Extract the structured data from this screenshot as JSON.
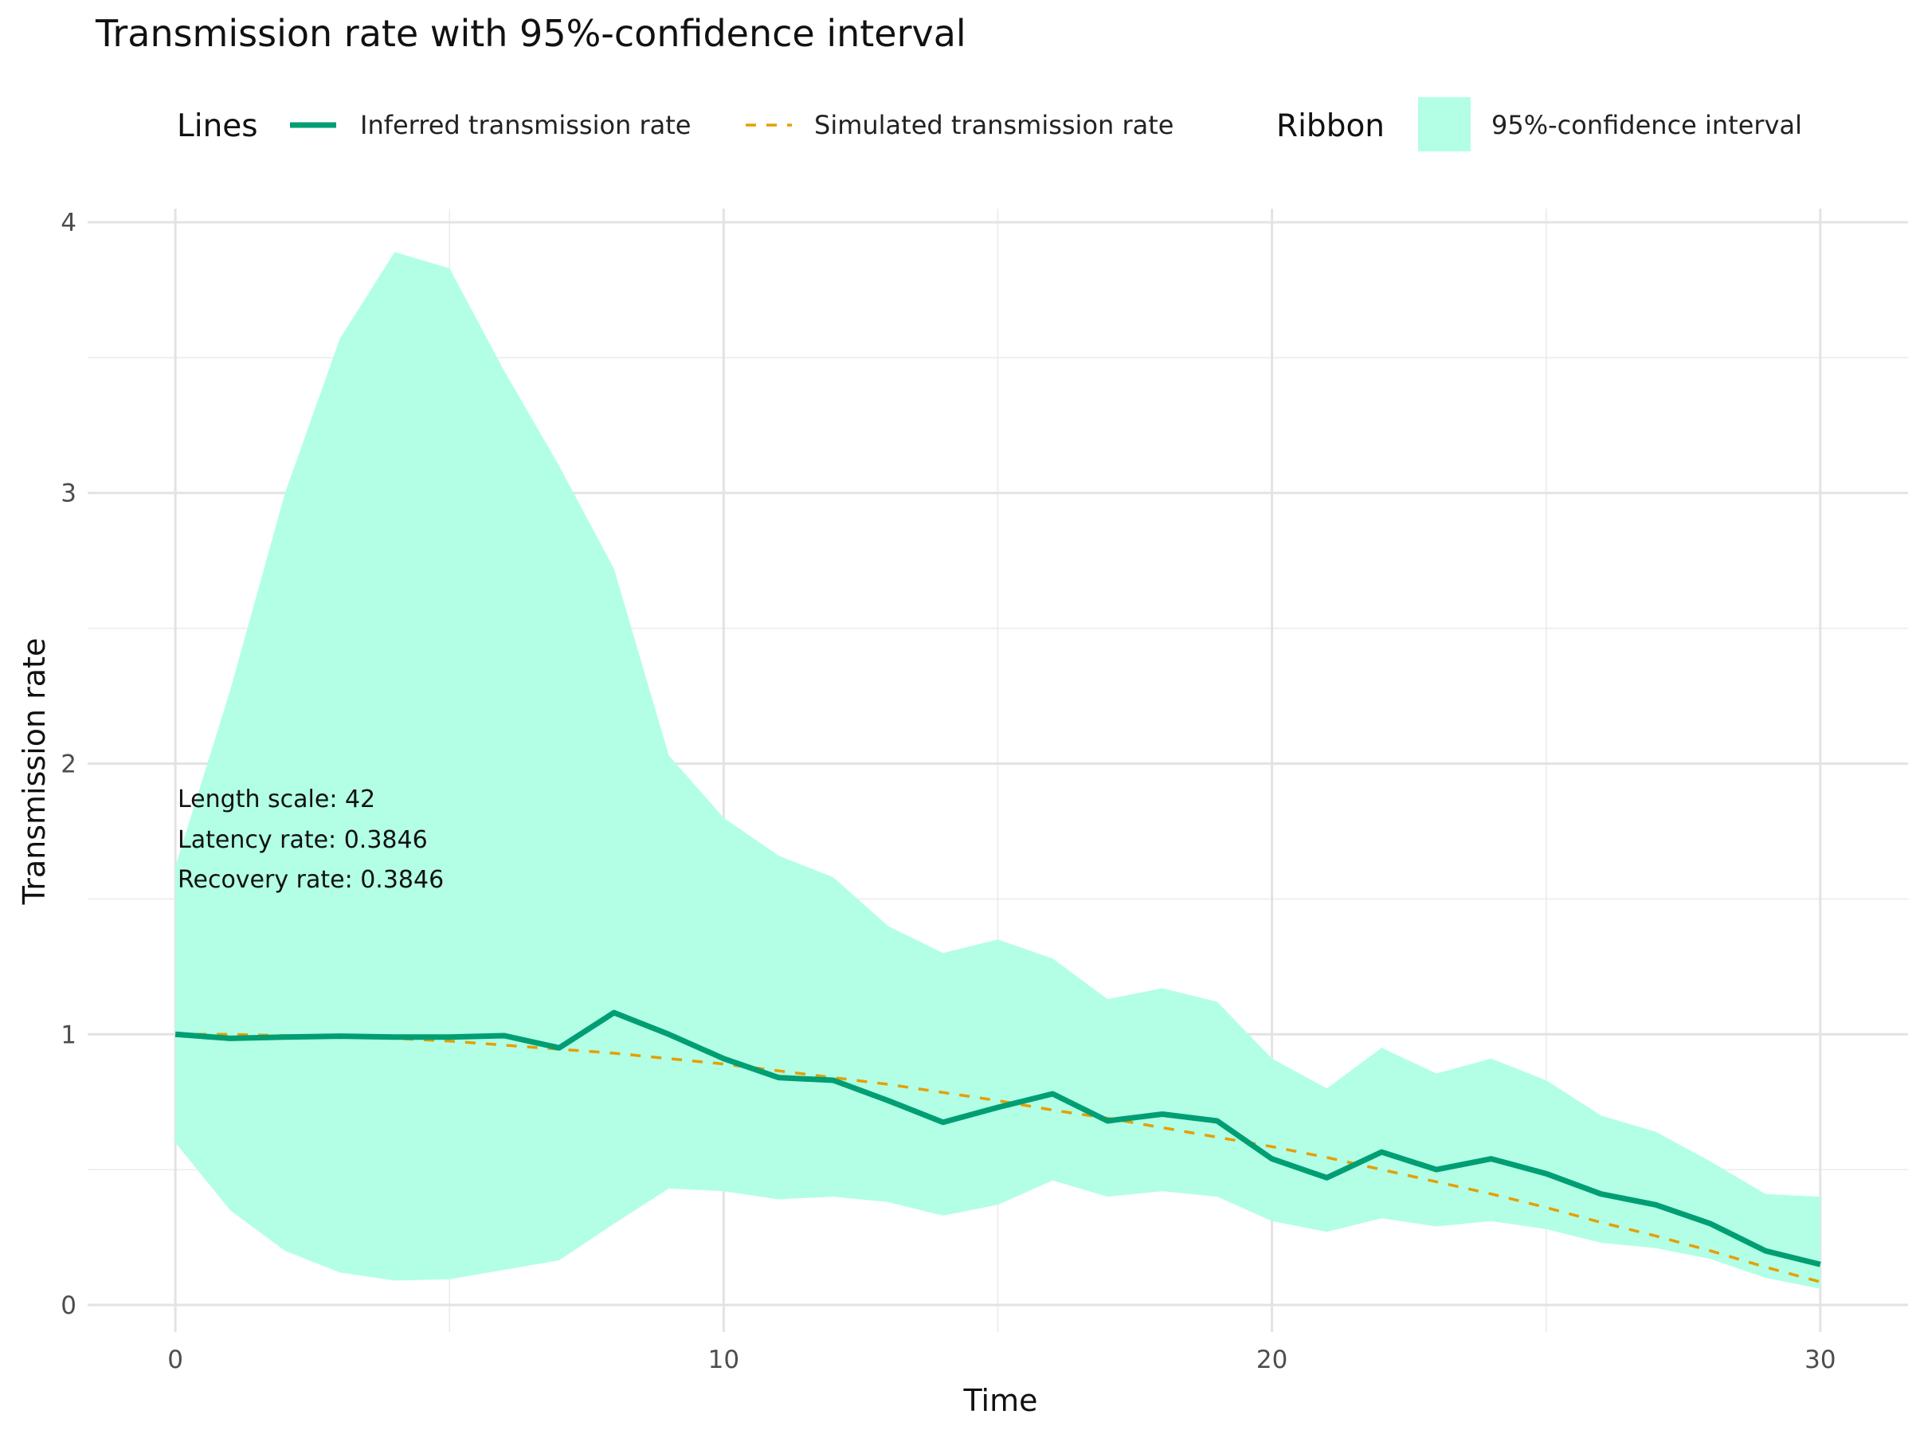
{
  "chart_data": {
    "type": "line",
    "title": "Transmission rate with 95%-confidence interval",
    "xlabel": "Time",
    "ylabel": "Transmission rate",
    "xlim": [
      -1.6,
      31.6
    ],
    "ylim": [
      -0.1,
      4.05
    ],
    "x_ticks": [
      0,
      10,
      20,
      30
    ],
    "x_minor_ticks": [
      5,
      15,
      25
    ],
    "y_ticks": [
      0,
      1,
      2,
      3,
      4
    ],
    "y_minor_ticks": [
      0.5,
      1.5,
      2.5,
      3.5
    ],
    "grid": true,
    "legend_position": "top",
    "legend": {
      "lines_title": "Lines",
      "ribbon_title": "Ribbon"
    },
    "x": [
      0,
      1,
      2,
      3,
      4,
      5,
      6,
      7,
      8,
      9,
      10,
      11,
      12,
      13,
      14,
      15,
      16,
      17,
      18,
      19,
      20,
      21,
      22,
      23,
      24,
      25,
      26,
      27,
      28,
      29,
      30
    ],
    "series": [
      {
        "name": "Inferred transmission rate",
        "style": "solid",
        "color": "#009e73",
        "values": [
          1.0,
          0.985,
          0.99,
          0.993,
          0.99,
          0.99,
          0.995,
          0.95,
          1.08,
          1.0,
          0.91,
          0.84,
          0.83,
          0.755,
          0.675,
          0.73,
          0.78,
          0.68,
          0.705,
          0.68,
          0.54,
          0.47,
          0.565,
          0.5,
          0.54,
          0.485,
          0.41,
          0.37,
          0.3,
          0.2,
          0.15
        ]
      },
      {
        "name": "Simulated transmission rate",
        "style": "dashed",
        "color": "#e69f00",
        "values": [
          1.0,
          1.0,
          0.995,
          0.99,
          0.985,
          0.975,
          0.96,
          0.945,
          0.93,
          0.91,
          0.89,
          0.865,
          0.84,
          0.815,
          0.785,
          0.755,
          0.72,
          0.69,
          0.655,
          0.62,
          0.585,
          0.545,
          0.5,
          0.455,
          0.41,
          0.36,
          0.305,
          0.255,
          0.2,
          0.14,
          0.085
        ]
      }
    ],
    "ribbon": {
      "name": "95%-confidence interval",
      "color": "#b2ffe6",
      "lower": [
        0.6,
        0.35,
        0.2,
        0.12,
        0.09,
        0.095,
        0.13,
        0.165,
        0.3,
        0.43,
        0.42,
        0.39,
        0.4,
        0.38,
        0.33,
        0.37,
        0.46,
        0.4,
        0.42,
        0.4,
        0.31,
        0.27,
        0.32,
        0.29,
        0.31,
        0.28,
        0.23,
        0.21,
        0.17,
        0.1,
        0.06
      ],
      "upper": [
        1.62,
        2.27,
        3.0,
        3.57,
        3.89,
        3.83,
        3.45,
        3.1,
        2.72,
        2.03,
        1.8,
        1.66,
        1.58,
        1.4,
        1.3,
        1.35,
        1.28,
        1.13,
        1.17,
        1.12,
        0.91,
        0.8,
        0.95,
        0.855,
        0.91,
        0.83,
        0.7,
        0.64,
        0.53,
        0.41,
        0.4
      ]
    },
    "annotations": [
      "Length scale: 42",
      "Latency rate: 0.3846",
      "Recovery rate: 0.3846"
    ]
  }
}
